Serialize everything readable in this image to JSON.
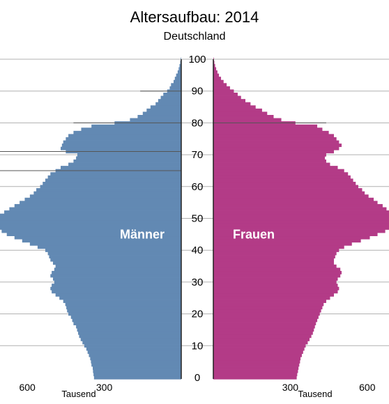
{
  "chart_data": {
    "type": "bar",
    "orientation": "population-pyramid",
    "title": "Altersaufbau: 2014",
    "subtitle": "Deutschland",
    "y_ticks": [
      "0",
      "10",
      "20",
      "30",
      "40",
      "50",
      "60",
      "70",
      "80",
      "90",
      "100"
    ],
    "x_ticks_left": [
      "600",
      "300"
    ],
    "x_ticks_right": [
      "300",
      "600"
    ],
    "x_unit_left": "Tausend",
    "x_unit_right": "Tausend",
    "xlim": [
      0,
      720
    ],
    "ylim": [
      0,
      100
    ],
    "ages": [
      0,
      1,
      2,
      3,
      4,
      5,
      6,
      7,
      8,
      9,
      10,
      11,
      12,
      13,
      14,
      15,
      16,
      17,
      18,
      19,
      20,
      21,
      22,
      23,
      24,
      25,
      26,
      27,
      28,
      29,
      30,
      31,
      32,
      33,
      34,
      35,
      36,
      37,
      38,
      39,
      40,
      41,
      42,
      43,
      44,
      45,
      46,
      47,
      48,
      49,
      50,
      51,
      52,
      53,
      54,
      55,
      56,
      57,
      58,
      59,
      60,
      61,
      62,
      63,
      64,
      65,
      66,
      67,
      68,
      69,
      70,
      71,
      72,
      73,
      74,
      75,
      76,
      77,
      78,
      79,
      80,
      81,
      82,
      83,
      84,
      85,
      86,
      87,
      88,
      89,
      90,
      91,
      92,
      93,
      94,
      95,
      96,
      97,
      98,
      99,
      100
    ],
    "series": [
      {
        "name": "Männer",
        "color": "#6289b3",
        "values": [
          340,
          342,
          344,
          345,
          350,
          352,
          355,
          360,
          365,
          370,
          378,
          385,
          392,
          398,
          402,
          406,
          410,
          420,
          425,
          430,
          440,
          445,
          448,
          452,
          460,
          475,
          490,
          505,
          510,
          505,
          495,
          500,
          510,
          505,
          495,
          490,
          500,
          510,
          515,
          520,
          530,
          560,
          590,
          620,
          650,
          680,
          700,
          710,
          720,
          725,
          720,
          710,
          690,
          670,
          650,
          630,
          610,
          590,
          575,
          565,
          550,
          540,
          530,
          520,
          510,
          490,
          470,
          440,
          420,
          410,
          405,
          450,
          470,
          465,
          460,
          450,
          440,
          420,
          390,
          350,
          260,
          200,
          170,
          150,
          135,
          120,
          100,
          90,
          80,
          70,
          55,
          45,
          40,
          30,
          25,
          20,
          14,
          10,
          7,
          4,
          2
        ],
        "outliers": {
          "65": 760,
          "71": 720,
          "80": 420,
          "90": 160
        }
      },
      {
        "name": "Frauen",
        "color": "#b33b87",
        "values": [
          325,
          327,
          330,
          332,
          335,
          338,
          340,
          345,
          350,
          355,
          360,
          368,
          375,
          382,
          388,
          392,
          396,
          400,
          405,
          410,
          415,
          420,
          425,
          430,
          440,
          455,
          470,
          485,
          490,
          485,
          480,
          485,
          495,
          500,
          495,
          480,
          470,
          470,
          475,
          480,
          490,
          510,
          540,
          575,
          610,
          640,
          670,
          690,
          705,
          715,
          715,
          705,
          690,
          675,
          660,
          640,
          625,
          605,
          590,
          580,
          565,
          555,
          545,
          535,
          525,
          510,
          485,
          455,
          440,
          435,
          440,
          470,
          490,
          500,
          490,
          480,
          470,
          450,
          425,
          405,
          320,
          265,
          235,
          210,
          190,
          165,
          145,
          125,
          108,
          95,
          80,
          65,
          52,
          40,
          30,
          22,
          16,
          11,
          7,
          4,
          2
        ],
        "outliers": {
          "80": 440
        }
      }
    ]
  }
}
